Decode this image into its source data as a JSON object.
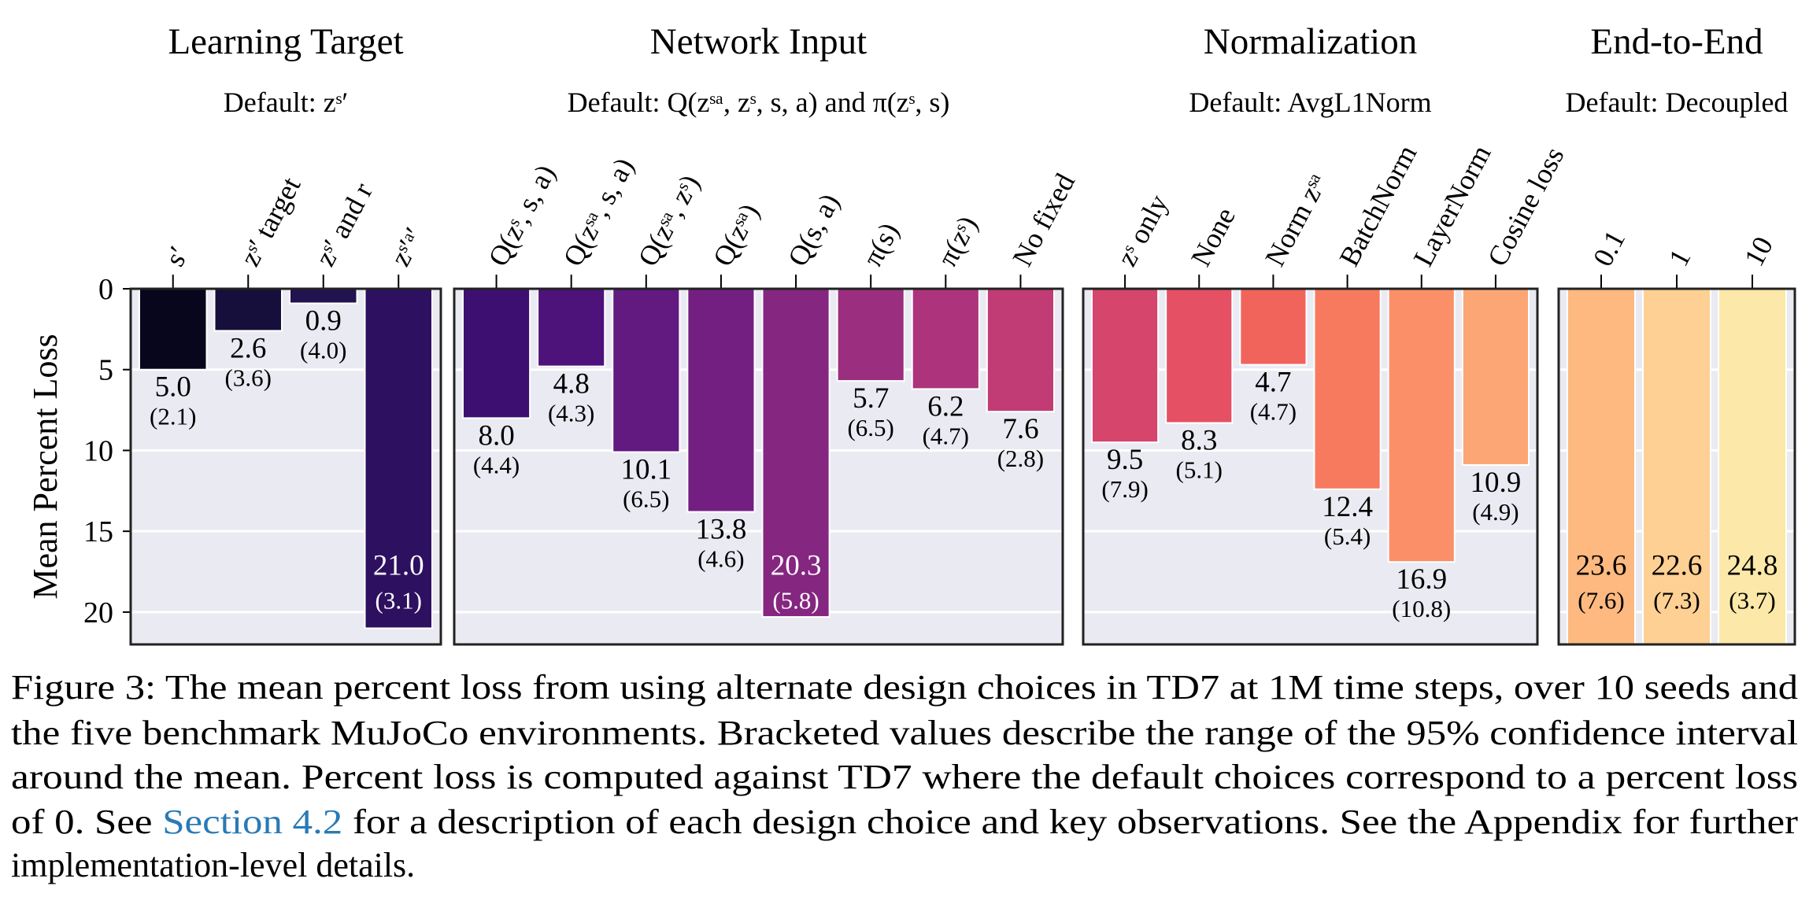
{
  "chart_data": [
    {
      "type": "bar",
      "title": "Learning Target",
      "subtitle": "Default: zˢ′",
      "y_label": "Mean Percent Loss",
      "categories": [
        "s′",
        "zˢ′ target",
        "zˢ′ and r",
        "zˢ′ᵃ′"
      ],
      "values": [
        5.0,
        2.6,
        0.9,
        21.0
      ],
      "value_labels": [
        "5.0",
        "2.6",
        "0.9",
        "21.0"
      ],
      "errors": [
        2.1,
        3.6,
        4.0,
        3.1
      ],
      "error_labels": [
        "(2.1)",
        "(3.6)",
        "(4.0)",
        "(3.1)"
      ],
      "colors": [
        "#07061c",
        "#160f3b",
        "#211350",
        "#2d1160"
      ],
      "ylim": [
        0,
        22
      ],
      "yticks": [
        0,
        5,
        10,
        15,
        20
      ],
      "y_inverted": true,
      "grid": true
    },
    {
      "type": "bar",
      "title": "Network Input",
      "subtitle": "Default: Q(zˢᵃ, zˢ, s, a) and π(zˢ, s)",
      "categories": [
        "Q(zˢ, s, a)",
        "Q(zˢᵃ, s, a)",
        "Q(zˢᵃ, zˢ)",
        "Q(zˢᵃ)",
        "Q(s, a)",
        "π(s)",
        "π(zˢ)",
        "No fixed"
      ],
      "values": [
        8.0,
        4.8,
        10.1,
        13.8,
        20.3,
        5.7,
        6.2,
        7.6
      ],
      "value_labels": [
        "8.0",
        "4.8",
        "10.1",
        "13.8",
        "20.3",
        "5.7",
        "6.2",
        "7.6"
      ],
      "errors": [
        4.4,
        4.3,
        6.5,
        4.6,
        5.8,
        6.5,
        4.7,
        2.8
      ],
      "error_labels": [
        "(4.4)",
        "(4.3)",
        "(6.5)",
        "(4.6)",
        "(5.8)",
        "(6.5)",
        "(4.7)",
        "(2.8)"
      ],
      "colors": [
        "#3d0f71",
        "#4e127b",
        "#621980",
        "#731f81",
        "#852681",
        "#9b2e7f",
        "#ad347c",
        "#c13b75"
      ],
      "ylim": [
        0,
        22
      ],
      "yticks": [
        0,
        5,
        10,
        15,
        20
      ],
      "y_inverted": true,
      "grid": true
    },
    {
      "type": "bar",
      "title": "Normalization",
      "subtitle": "Default: AvgL1Norm",
      "categories": [
        "zˢ only",
        "None",
        "Norm zˢᵃ",
        "BatchNorm",
        "LayerNorm",
        "Cosine loss"
      ],
      "values": [
        9.5,
        8.3,
        4.7,
        12.4,
        16.9,
        10.9
      ],
      "value_labels": [
        "9.5",
        "8.3",
        "4.7",
        "12.4",
        "16.9",
        "10.9"
      ],
      "errors": [
        7.9,
        5.1,
        4.7,
        5.4,
        10.8,
        4.9
      ],
      "error_labels": [
        "(7.9)",
        "(5.1)",
        "(4.7)",
        "(5.4)",
        "(10.8)",
        "(4.9)"
      ],
      "colors": [
        "#d6456c",
        "#e55064",
        "#f1645c",
        "#f87a5e",
        "#fb9068",
        "#fda675"
      ],
      "ylim": [
        0,
        22
      ],
      "yticks": [
        0,
        5,
        10,
        15,
        20
      ],
      "y_inverted": true,
      "grid": true
    },
    {
      "type": "bar",
      "title": "End-to-End",
      "subtitle": "Default: Decoupled",
      "categories": [
        "0.1",
        "1",
        "10"
      ],
      "values": [
        23.6,
        22.6,
        24.8
      ],
      "value_labels": [
        "23.6",
        "22.6",
        "24.8"
      ],
      "errors": [
        7.6,
        7.3,
        3.7
      ],
      "error_labels": [
        "(7.6)",
        "(7.3)",
        "(3.7)"
      ],
      "colors": [
        "#fdb97f",
        "#fed093",
        "#fce8a8"
      ],
      "ylim": [
        0,
        22
      ],
      "yticks": [
        0,
        5,
        10,
        15,
        20
      ],
      "y_inverted": true,
      "grid": true
    }
  ],
  "caption": [
    [
      "Figure 3: The mean percent loss from using alternate design choices in TD7 at 1M time steps, over 10 seeds and"
    ],
    [
      "the five benchmark MuJoCo environments. Bracketed values describe the range of the 95% confidence interval"
    ],
    [
      "around the mean. Percent loss is computed against TD7 where the default choices correspond to a percent loss"
    ],
    [
      "of 0. See ",
      "Section 4.2",
      " for a description of each design choice and key observations. See the Appendix for further"
    ],
    [
      "implementation-level details."
    ]
  ]
}
